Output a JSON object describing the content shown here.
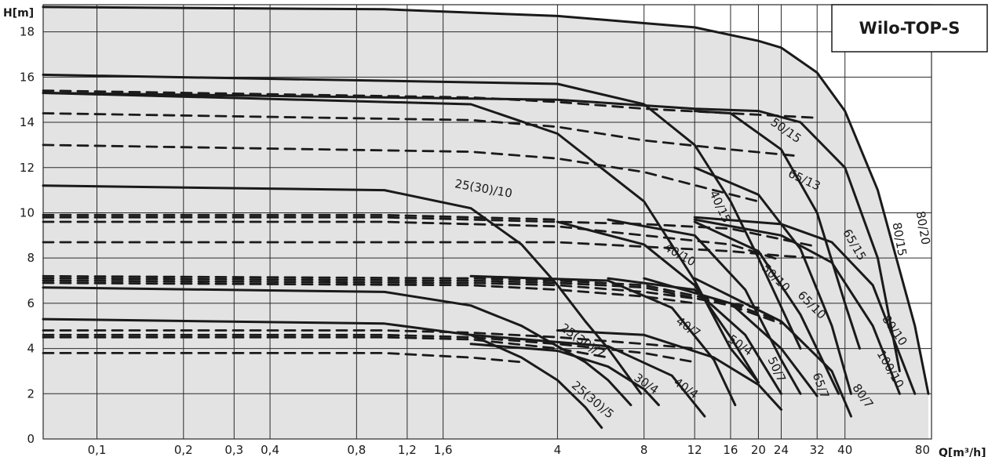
{
  "chart_data": {
    "type": "line",
    "title": "Wilo-TOP-S",
    "xlabel": "Q[m³/h]",
    "ylabel": "H[m]",
    "x_scale": "log",
    "xlim": [
      0.065,
      80
    ],
    "ylim": [
      0,
      19.2
    ],
    "grid": true,
    "x_ticks": [
      0.1,
      0.2,
      0.3,
      0.4,
      0.8,
      1.2,
      1.6,
      4,
      8,
      12,
      16,
      20,
      24,
      32,
      40,
      80
    ],
    "x_tick_labels": [
      "0,1",
      "0,2",
      "0,3",
      "0,4",
      "0,8",
      "1,2",
      "1,6",
      "4",
      "8",
      "12",
      "16",
      "20",
      "24",
      "32",
      "40",
      "80"
    ],
    "y_ticks": [
      0,
      2,
      4,
      6,
      8,
      10,
      12,
      14,
      16,
      18
    ],
    "y_tick_labels": [
      "0",
      "2",
      "4",
      "6",
      "8",
      "10",
      "12",
      "14",
      "16",
      "18"
    ],
    "series": [
      {
        "name": "25(30)/5",
        "style": "solid",
        "x": [
          0.065,
          1,
          2,
          3,
          4,
          5,
          5.7
        ],
        "y": [
          5.3,
          5.1,
          4.6,
          3.6,
          2.6,
          1.4,
          0.5
        ]
      },
      {
        "name": "25(30)/7",
        "style": "solid",
        "x": [
          0.065,
          1,
          2,
          3,
          4,
          5,
          6,
          7.2
        ],
        "y": [
          6.7,
          6.5,
          5.9,
          5.0,
          4.1,
          3.4,
          2.6,
          1.5
        ]
      },
      {
        "name": "25(30)/10",
        "style": "solid",
        "x": [
          0.065,
          1,
          2,
          3,
          4,
          5,
          6,
          7.8
        ],
        "y": [
          11.2,
          11.0,
          10.2,
          8.6,
          6.8,
          5.2,
          4.0,
          2.0
        ]
      },
      {
        "name": "30/4",
        "style": "solid",
        "x": [
          2,
          4,
          6,
          8,
          9
        ],
        "y": [
          4.2,
          3.9,
          3.2,
          2.2,
          1.5
        ]
      },
      {
        "name": "40/4",
        "style": "solid",
        "x": [
          2,
          6,
          10,
          13
        ],
        "y": [
          4.6,
          4.1,
          2.8,
          1.0
        ]
      },
      {
        "name": "40/7",
        "style": "solid",
        "x": [
          2,
          6,
          10,
          14,
          16.6
        ],
        "y": [
          7.2,
          7.0,
          5.8,
          3.5,
          1.5
        ]
      },
      {
        "name": "40/10",
        "style": "solid",
        "x": [
          4,
          8,
          12,
          16,
          20
        ],
        "y": [
          9.6,
          8.6,
          6.8,
          4.5,
          2.5
        ]
      },
      {
        "name": "40/15",
        "style": "solid",
        "x": [
          0.065,
          2,
          4,
          8,
          12,
          16,
          20
        ],
        "y": [
          15.3,
          14.8,
          13.5,
          10.5,
          7.0,
          4.0,
          2.5
        ]
      },
      {
        "name": "50/4",
        "style": "solid",
        "x": [
          4,
          8,
          14,
          20,
          24
        ],
        "y": [
          4.8,
          4.6,
          3.6,
          2.4,
          1.3
        ]
      },
      {
        "name": "50/7",
        "style": "solid",
        "x": [
          6,
          12,
          18,
          24
        ],
        "y": [
          7.1,
          6.6,
          4.6,
          2.0
        ]
      },
      {
        "name": "50/10",
        "style": "solid",
        "x": [
          6,
          12,
          18,
          24,
          28
        ],
        "y": [
          9.7,
          9.0,
          6.6,
          3.5,
          2.0
        ]
      },
      {
        "name": "50/15",
        "style": "solid",
        "x": [
          0.065,
          4,
          8,
          12,
          16,
          20,
          28
        ],
        "y": [
          16.1,
          15.7,
          14.8,
          13.0,
          10.5,
          8.0,
          4.0
        ]
      },
      {
        "name": "65/7",
        "style": "solid",
        "x": [
          8,
          16,
          24,
          32
        ],
        "y": [
          7.1,
          6.0,
          4.0,
          1.9
        ]
      },
      {
        "name": "65/10",
        "style": "solid",
        "x": [
          12,
          20,
          28,
          38
        ],
        "y": [
          9.6,
          8.3,
          5.5,
          2.0
        ]
      },
      {
        "name": "65/13",
        "style": "solid",
        "x": [
          12,
          20,
          28,
          36,
          42
        ],
        "y": [
          12.0,
          10.8,
          8.4,
          5.0,
          2.0
        ]
      },
      {
        "name": "65/15",
        "style": "solid",
        "x": [
          12,
          16,
          24,
          32,
          40,
          45
        ],
        "y": [
          14.5,
          14.4,
          12.8,
          10.0,
          6.0,
          4.0
        ]
      },
      {
        "name": "80/7",
        "style": "solid",
        "x": [
          12,
          24,
          36,
          42
        ],
        "y": [
          7.1,
          5.2,
          3.0,
          1.0
        ]
      },
      {
        "name": "80/10",
        "style": "solid",
        "x": [
          12,
          24,
          36,
          50,
          62
        ],
        "y": [
          9.7,
          9.0,
          7.8,
          5.0,
          2.0
        ]
      },
      {
        "name": "100/10",
        "style": "solid",
        "x": [
          12,
          24,
          36,
          50,
          70
        ],
        "y": [
          9.8,
          9.5,
          8.7,
          6.8,
          2.0
        ]
      },
      {
        "name": "80/15",
        "style": "solid",
        "x": [
          0.065,
          4,
          12,
          20,
          28,
          40,
          52,
          62
        ],
        "y": [
          15.3,
          15.0,
          14.6,
          14.5,
          14.0,
          12.0,
          8.0,
          3.0
        ]
      },
      {
        "name": "80/20",
        "style": "solid",
        "x": [
          0.065,
          1,
          4,
          12,
          20,
          24,
          32,
          40,
          52,
          70,
          78
        ],
        "y": [
          19.1,
          19.0,
          18.7,
          18.2,
          17.6,
          17.3,
          16.2,
          14.5,
          11.0,
          5.0,
          2.0
        ]
      },
      {
        "name": "",
        "style": "dashed",
        "x": [
          0.065,
          2,
          4,
          8,
          16,
          32
        ],
        "y": [
          15.4,
          15.1,
          14.9,
          14.6,
          14.4,
          14.2
        ]
      },
      {
        "name": "",
        "style": "dashed",
        "x": [
          0.065,
          2,
          4,
          8,
          16,
          28
        ],
        "y": [
          14.4,
          14.1,
          13.8,
          13.2,
          12.8,
          12.5
        ]
      },
      {
        "name": "",
        "style": "dashed",
        "x": [
          0.065,
          2,
          4,
          8,
          14,
          20
        ],
        "y": [
          13.0,
          12.7,
          12.4,
          11.8,
          11.0,
          10.5
        ]
      },
      {
        "name": "",
        "style": "dashed",
        "x": [
          0.065,
          1,
          2,
          4
        ],
        "y": [
          9.9,
          9.9,
          9.8,
          9.7
        ]
      },
      {
        "name": "",
        "style": "dashed",
        "x": [
          0.065,
          1,
          2,
          4,
          8,
          16,
          32
        ],
        "y": [
          9.8,
          9.8,
          9.7,
          9.6,
          9.5,
          9.3,
          8.5
        ]
      },
      {
        "name": "",
        "style": "dashed",
        "x": [
          0.065,
          1,
          2,
          4,
          8,
          16,
          24
        ],
        "y": [
          9.6,
          9.6,
          9.5,
          9.4,
          9.0,
          8.6,
          7.9
        ]
      },
      {
        "name": "",
        "style": "dashed",
        "x": [
          0.065,
          1,
          2,
          4,
          8,
          16,
          24,
          32
        ],
        "y": [
          8.7,
          8.7,
          8.7,
          8.7,
          8.5,
          8.3,
          8.1,
          8.0
        ]
      },
      {
        "name": "",
        "style": "dashed",
        "x": [
          0.065,
          2,
          4,
          8,
          16,
          24
        ],
        "y": [
          7.2,
          7.1,
          7.0,
          6.8,
          6.0,
          5.2
        ]
      },
      {
        "name": "",
        "style": "dashed",
        "x": [
          0.065,
          2,
          4,
          8,
          16,
          24
        ],
        "y": [
          7.1,
          7.0,
          6.9,
          6.7,
          5.9,
          5.1
        ]
      },
      {
        "name": "",
        "style": "dashed",
        "x": [
          0.065,
          2,
          4,
          8,
          14,
          20
        ],
        "y": [
          7.0,
          6.9,
          6.8,
          6.5,
          6.1,
          5.8
        ]
      },
      {
        "name": "",
        "style": "dashed",
        "x": [
          0.065,
          2,
          4,
          8,
          12
        ],
        "y": [
          6.9,
          6.8,
          6.6,
          6.3,
          6.0
        ]
      },
      {
        "name": "",
        "style": "dashed",
        "x": [
          0.065,
          1,
          2,
          4,
          8,
          12
        ],
        "y": [
          4.8,
          4.8,
          4.7,
          4.5,
          4.2,
          4.0
        ]
      },
      {
        "name": "",
        "style": "dashed",
        "x": [
          0.065,
          1,
          2,
          4,
          8,
          12
        ],
        "y": [
          4.6,
          4.6,
          4.5,
          4.2,
          3.8,
          3.4
        ]
      },
      {
        "name": "",
        "style": "dashed",
        "x": [
          0.065,
          1,
          2,
          4,
          6
        ],
        "y": [
          4.5,
          4.5,
          4.4,
          4.0,
          3.6
        ]
      },
      {
        "name": "",
        "style": "dashed",
        "x": [
          0.065,
          1,
          2,
          3
        ],
        "y": [
          3.8,
          3.8,
          3.6,
          3.4
        ]
      }
    ],
    "curve_labels": [
      {
        "text": "25(30)/10",
        "x": 2.2,
        "y": 10.9,
        "angle": 10
      },
      {
        "text": "25(30)/7",
        "x": 4.8,
        "y": 4.2,
        "angle": 35
      },
      {
        "text": "25(30)/5",
        "x": 5.2,
        "y": 1.6,
        "angle": 40
      },
      {
        "text": "30/4",
        "x": 8.0,
        "y": 2.3,
        "angle": 35
      },
      {
        "text": "40/4",
        "x": 11.0,
        "y": 2.1,
        "angle": 35
      },
      {
        "text": "40/7",
        "x": 11.2,
        "y": 4.8,
        "angle": 35
      },
      {
        "text": "40/10",
        "x": 10.5,
        "y": 8.0,
        "angle": 30
      },
      {
        "text": "40/15",
        "x": 14.3,
        "y": 10.2,
        "angle": 65
      },
      {
        "text": "50/4",
        "x": 17.0,
        "y": 4.0,
        "angle": 35
      },
      {
        "text": "50/7",
        "x": 22.5,
        "y": 3.0,
        "angle": 65
      },
      {
        "text": "50/10",
        "x": 22.5,
        "y": 7.0,
        "angle": 45
      },
      {
        "text": "50/15",
        "x": 24.5,
        "y": 13.5,
        "angle": 35
      },
      {
        "text": "65/7",
        "x": 32.0,
        "y": 2.3,
        "angle": 70
      },
      {
        "text": "65/10",
        "x": 30.0,
        "y": 5.8,
        "angle": 45
      },
      {
        "text": "65/13",
        "x": 28.5,
        "y": 11.3,
        "angle": 25
      },
      {
        "text": "65/15",
        "x": 42.0,
        "y": 8.5,
        "angle": 60
      },
      {
        "text": "80/7",
        "x": 45.0,
        "y": 1.8,
        "angle": 55
      },
      {
        "text": "80/10",
        "x": 58.0,
        "y": 4.7,
        "angle": 55
      },
      {
        "text": "100/10",
        "x": 56.0,
        "y": 3.0,
        "angle": 60
      },
      {
        "text": "80/15",
        "x": 60.0,
        "y": 8.8,
        "angle": 80
      },
      {
        "text": "80/20",
        "x": 72.5,
        "y": 9.3,
        "angle": 80
      }
    ],
    "colors": {
      "background": "#ffffff",
      "envelope": "#e3e3e3",
      "grid": "#2a2a2a",
      "curve": "#1a1a1a"
    }
  }
}
